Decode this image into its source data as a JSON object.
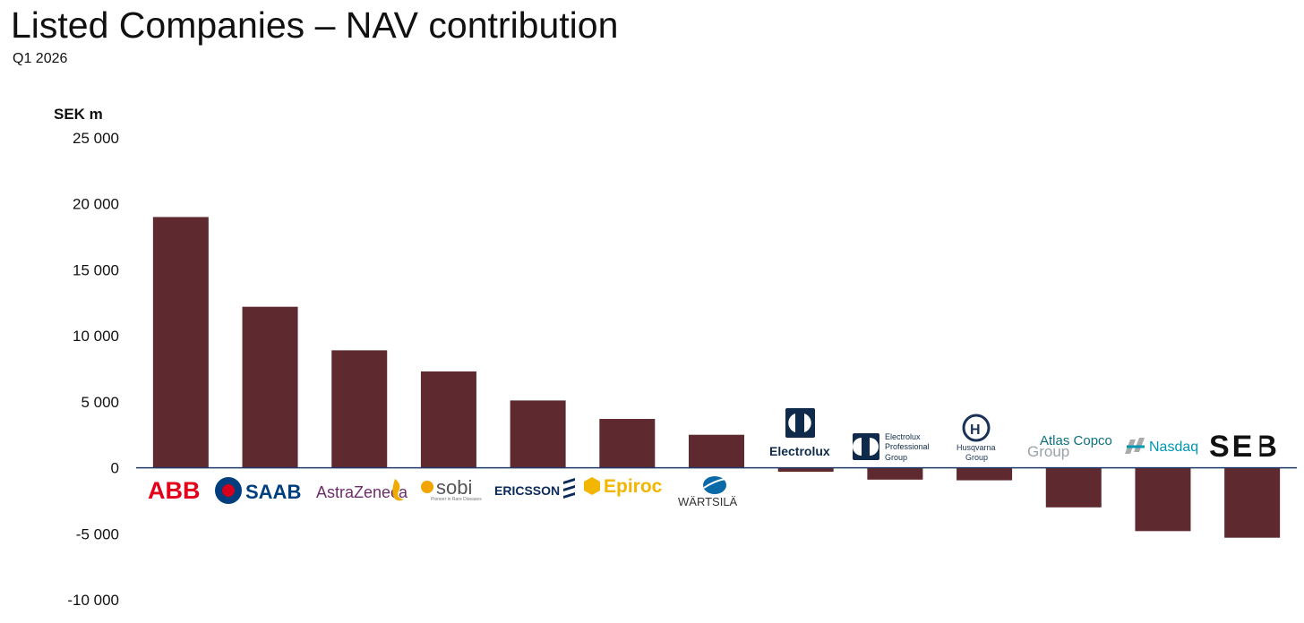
{
  "header": {
    "title": "Listed Companies – NAV contribution",
    "subtitle": "Q1 2026"
  },
  "colors": {
    "bar": "#5e2a2f",
    "axis": "#1f3a68",
    "abb": "#e2001a",
    "saab_blue": "#003e7e",
    "astrazeneca": "#6e2c6b",
    "az_gold": "#efab00",
    "sobi": "#f0a500",
    "ericsson": "#0a2a5a",
    "epiroc": "#f3b600",
    "wartsila": "#0a6aa8",
    "electrolux": "#0f2a4a",
    "husqvarna": "#1b3257",
    "atlas": "#0e6f7d",
    "nasdaq": "#0096b4",
    "seb": "#111111"
  },
  "chart_data": {
    "type": "bar",
    "title": "Listed Companies – NAV contribution",
    "subtitle": "Q1 2026",
    "ylabel": "SEK m",
    "xlabel": "",
    "ylim": [
      -10000,
      25000
    ],
    "yticks": [
      25000,
      20000,
      15000,
      10000,
      5000,
      0,
      -5000,
      -10000
    ],
    "ytick_labels": [
      "25 000",
      "20 000",
      "15 000",
      "10 000",
      "5 000",
      "0",
      "-5 000",
      "-10 000"
    ],
    "grid": false,
    "categories": [
      "ABB",
      "SAAB",
      "AstraZeneca",
      "sobi",
      "ERICSSON",
      "Epiroc",
      "WÄRTSILÄ",
      "Electrolux",
      "Electrolux Professional Group",
      "Husqvarna Group",
      "Atlas Copco Group",
      "Nasdaq",
      "SEB"
    ],
    "values": [
      19000,
      12200,
      8900,
      7300,
      5100,
      3700,
      2500,
      -300,
      -900,
      -950,
      -3000,
      -4800,
      -5300
    ]
  },
  "logos": {
    "abb": "ABB",
    "saab": "SAAB",
    "astrazeneca": "AstraZeneca",
    "sobi": "sobi",
    "sobi_tagline": "Pioneer in Rare Diseases",
    "ericsson": "ERICSSON",
    "epiroc": "Epiroc",
    "wartsila": "WÄRTSILÄ",
    "electrolux": "Electrolux",
    "eprof_line1": "Electrolux",
    "eprof_line2": "Professional",
    "eprof_line3": "Group",
    "husq_line1": "Husqvarna",
    "husq_line2": "Group",
    "atlas_line1": "Atlas Copco",
    "atlas_line2": "Group",
    "nasdaq": "Nasdaq",
    "seb": "SEB"
  }
}
